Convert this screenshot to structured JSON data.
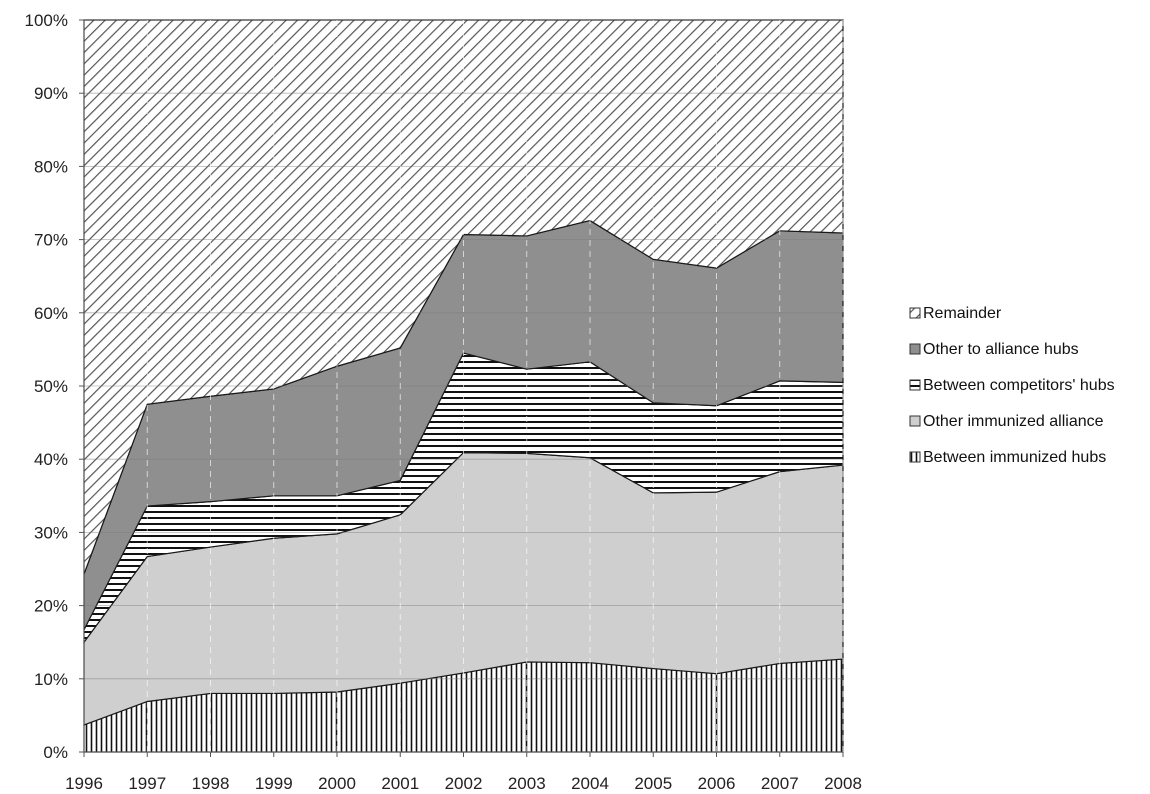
{
  "chart_data": {
    "type": "area",
    "stacked": true,
    "percent": true,
    "x": [
      "1996",
      "1997",
      "1998",
      "1999",
      "2000",
      "2001",
      "2002",
      "2003",
      "2004",
      "2005",
      "2006",
      "2007",
      "2008"
    ],
    "ylim": [
      0,
      100
    ],
    "yticks": [
      "0%",
      "10%",
      "20%",
      "30%",
      "40%",
      "50%",
      "60%",
      "70%",
      "80%",
      "90%",
      "100%"
    ],
    "grid": true,
    "legend_position": "right",
    "series": [
      {
        "name": "Between immunized hubs",
        "pattern": "vertical-lines",
        "values": [
          3.7,
          6.9,
          8.0,
          8.0,
          8.2,
          9.4,
          10.8,
          12.3,
          12.2,
          11.4,
          10.7,
          12.1,
          12.7
        ]
      },
      {
        "name": "Other immunized alliance",
        "pattern": "light-gray",
        "values": [
          11.3,
          19.8,
          20.0,
          21.2,
          21.6,
          23.0,
          30.1,
          28.5,
          28.0,
          24.0,
          24.8,
          26.2,
          26.5
        ]
      },
      {
        "name": "Between competitors' hubs",
        "pattern": "horizontal-lines",
        "values": [
          1.7,
          6.9,
          6.2,
          5.8,
          5.2,
          4.7,
          13.6,
          11.5,
          13.1,
          12.3,
          11.8,
          12.4,
          11.3
        ]
      },
      {
        "name": "Other to alliance hubs",
        "pattern": "dark-gray",
        "values": [
          7.6,
          13.9,
          14.4,
          14.6,
          17.7,
          18.1,
          16.2,
          18.2,
          19.3,
          19.6,
          18.8,
          20.5,
          20.4
        ]
      },
      {
        "name": "Remainder",
        "pattern": "diagonal-lines",
        "values": [
          75.7,
          52.5,
          51.4,
          50.4,
          47.3,
          44.8,
          29.3,
          29.5,
          27.4,
          32.7,
          33.9,
          28.8,
          29.1
        ]
      }
    ]
  }
}
